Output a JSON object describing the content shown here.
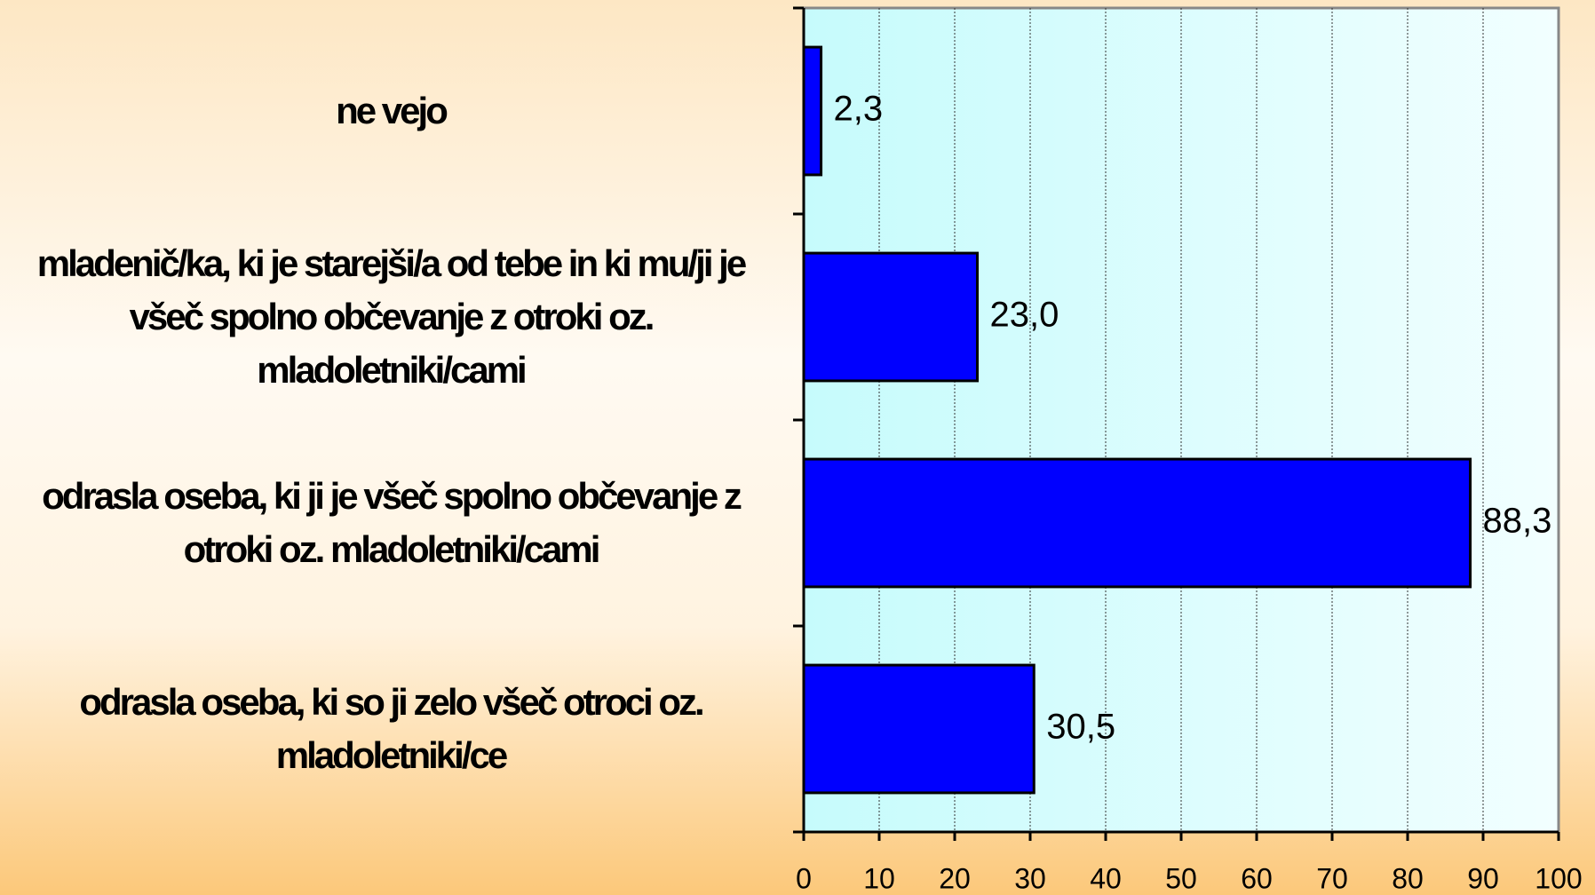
{
  "chart_data": {
    "type": "bar",
    "orientation": "horizontal",
    "categories": [
      "ne vejo",
      "mladenič/ka, ki je starejši/a od tebe in ki mu/ji je všeč spolno občevanje z otroki oz. mladoletniki/cami",
      "odrasla oseba, ki ji je všeč spolno občevanje z otroki oz. mladoletniki/cami",
      "odrasla oseba, ki so ji zelo všeč otroci oz. mladoletniki/ce"
    ],
    "values": [
      2.3,
      23.0,
      88.3,
      30.5
    ],
    "value_labels": [
      "2,3",
      "23,0",
      "88,3",
      "30,5"
    ],
    "color": "#0000ff",
    "xlim": [
      0,
      100
    ],
    "xticks": [
      0,
      10,
      20,
      30,
      40,
      50,
      60,
      70,
      80,
      90,
      100
    ],
    "grid": true
  }
}
